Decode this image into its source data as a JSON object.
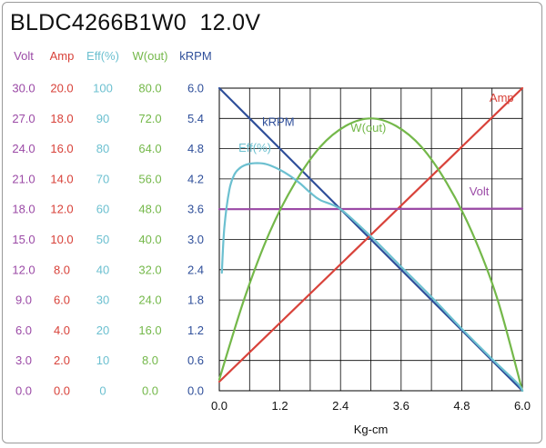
{
  "title": "BLDC4266B1W0  12.0V",
  "chart_data": {
    "type": "line",
    "title": "BLDC4266B1W0  12.0V",
    "xlabel": "Kg-cm",
    "xlim": [
      0,
      6
    ],
    "x_ticks": [
      "0.0",
      "1.2",
      "2.4",
      "3.6",
      "4.8",
      "6.0"
    ],
    "axes": [
      {
        "key": "volt",
        "header": "Volt",
        "color": "#9b4aa6",
        "range": [
          0,
          30
        ],
        "ticks": [
          "0.0",
          "3.0",
          "6.0",
          "9.0",
          "12.0",
          "15.0",
          "18.0",
          "21.0",
          "24.0",
          "27.0",
          "30.0"
        ]
      },
      {
        "key": "amp",
        "header": "Amp",
        "color": "#d8423a",
        "range": [
          0,
          20
        ],
        "ticks": [
          "0.0",
          "2.0",
          "4.0",
          "6.0",
          "8.0",
          "10.0",
          "12.0",
          "14.0",
          "16.0",
          "18.0",
          "20.0"
        ]
      },
      {
        "key": "eff",
        "header": "Eff(%)",
        "color": "#6cc0d0",
        "range": [
          0,
          100
        ],
        "ticks": [
          "0",
          "10",
          "20",
          "30",
          "40",
          "50",
          "60",
          "70",
          "80",
          "90",
          "100"
        ]
      },
      {
        "key": "wout",
        "header": "W(out)",
        "color": "#74b84a",
        "range": [
          0,
          80
        ],
        "ticks": [
          "0.0",
          "8.0",
          "16.0",
          "24.0",
          "32.0",
          "40.0",
          "48.0",
          "56.0",
          "64.0",
          "72.0",
          "80.0"
        ]
      },
      {
        "key": "krpm",
        "header": "kRPM",
        "color": "#2f4f9a",
        "range": [
          0,
          6
        ],
        "ticks": [
          "0.0",
          "0.6",
          "1.2",
          "1.8",
          "2.4",
          "3.0",
          "3.6",
          "4.2",
          "4.8",
          "5.4",
          "6.0"
        ]
      }
    ],
    "series": [
      {
        "name": "kRPM",
        "axis": "krpm",
        "color": "#2f4f9a",
        "label": "kRPM",
        "x": [
          0.0,
          1.0,
          2.0,
          3.0,
          4.0,
          5.0,
          6.0
        ],
        "y": [
          6.0,
          5.0,
          4.0,
          3.0,
          2.0,
          1.0,
          0.0
        ]
      },
      {
        "name": "Amp",
        "axis": "amp",
        "color": "#d8423a",
        "label": "Amp",
        "x": [
          0.0,
          6.0
        ],
        "y": [
          0.6,
          20.0
        ]
      },
      {
        "name": "Volt",
        "axis": "volt",
        "color": "#9b4aa6",
        "label": "Volt",
        "x": [
          0.0,
          6.0
        ],
        "y": [
          18.0,
          18.05
        ]
      },
      {
        "name": "W(out)",
        "axis": "wout",
        "color": "#74b84a",
        "label": "W(out)",
        "x": [
          0.0,
          0.5,
          1.0,
          1.5,
          2.0,
          2.5,
          3.0,
          3.5,
          4.0,
          4.5,
          5.0,
          5.5,
          6.0
        ],
        "y": [
          3.0,
          24.5,
          42.0,
          55.0,
          64.5,
          70.0,
          72.0,
          70.0,
          64.5,
          55.0,
          42.0,
          24.5,
          0.0
        ]
      },
      {
        "name": "Eff(%)",
        "axis": "eff",
        "color": "#6cc0d0",
        "label": "Eff(%)",
        "x": [
          0.05,
          0.1,
          0.2,
          0.3,
          0.4,
          0.5,
          0.6,
          0.7,
          0.8,
          0.9,
          1.0,
          1.2,
          1.4,
          1.6,
          1.8,
          2.0,
          2.4,
          3.0,
          3.6,
          4.2,
          4.8,
          5.4,
          5.9,
          6.0
        ],
        "y": [
          39.0,
          54.0,
          66.5,
          71.5,
          73.5,
          74.5,
          75.0,
          75.2,
          75.2,
          75.0,
          74.5,
          73.0,
          71.0,
          68.5,
          65.5,
          63.0,
          60.0,
          51.0,
          41.0,
          31.0,
          20.5,
          10.5,
          2.5,
          0.0
        ]
      }
    ]
  }
}
